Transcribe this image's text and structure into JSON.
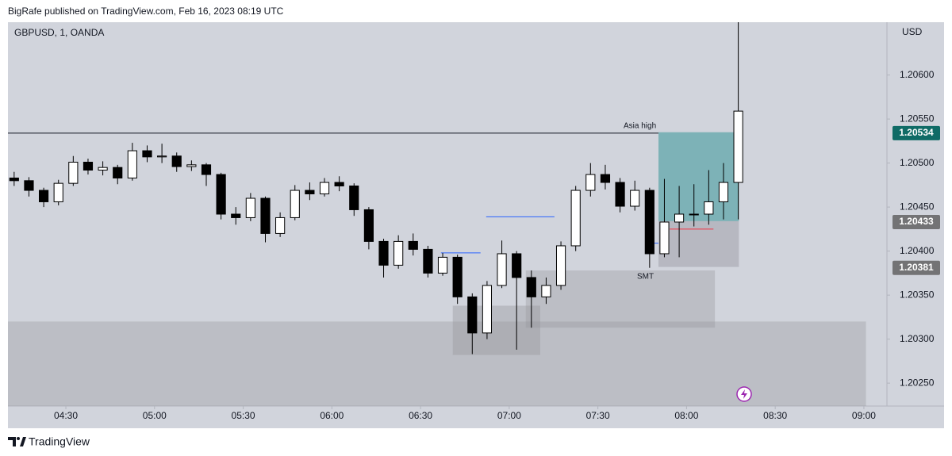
{
  "header": "BigRafe published on TradingView.com, Feb 16, 2023 08:19 UTC",
  "footer": "TradingView",
  "chart_data": {
    "type": "candlestick",
    "symbol": "GBPUSD, 1, OANDA",
    "currency": "USD",
    "candle_up_color": "#ffffff",
    "candle_down_color": "#000000",
    "x": [
      250,
      255,
      260,
      265,
      270,
      275,
      280,
      285,
      290,
      295,
      300,
      305,
      310,
      315,
      320,
      325,
      330,
      335,
      340,
      345,
      350,
      355,
      360,
      365,
      370,
      375,
      380,
      385,
      390,
      395,
      400,
      405,
      410,
      415,
      420,
      425,
      430,
      435,
      440,
      445,
      450,
      455,
      460,
      465,
      470,
      475,
      480,
      485,
      490,
      495
    ],
    "open": [
      1.20483,
      1.2048,
      1.20469,
      1.20456,
      1.20477,
      1.20501,
      1.20492,
      1.20495,
      1.20483,
      1.20514,
      1.20507,
      1.20508,
      1.20496,
      1.20498,
      1.20487,
      1.20442,
      1.20438,
      1.2046,
      1.2042,
      1.20438,
      1.20469,
      1.20465,
      1.20478,
      1.20474,
      1.20447,
      1.20411,
      1.20384,
      1.20411,
      1.20402,
      1.20375,
      1.20393,
      1.20348,
      1.20307,
      1.20361,
      1.20397,
      1.2037,
      1.20348,
      1.20361,
      1.20406,
      1.20469,
      1.20487,
      1.20478,
      1.20451,
      1.20469,
      1.20397,
      1.20433,
      1.20442,
      1.20442,
      1.20456,
      1.20478
    ],
    "high": [
      1.2049,
      1.20484,
      1.20472,
      1.20481,
      1.20508,
      1.20505,
      1.20502,
      1.20498,
      1.20523,
      1.2052,
      1.20522,
      1.20512,
      1.20503,
      1.205,
      1.20489,
      1.2045,
      1.20466,
      1.20462,
      1.20444,
      1.20475,
      1.20478,
      1.20483,
      1.20485,
      1.20477,
      1.2045,
      1.20414,
      1.20418,
      1.2042,
      1.20406,
      1.20398,
      1.20396,
      1.20352,
      1.20366,
      1.20412,
      1.204,
      1.20378,
      1.2037,
      1.20411,
      1.20474,
      1.205,
      1.20498,
      1.20483,
      1.2048,
      1.20472,
      1.20482,
      1.20474,
      1.20476,
      1.20492,
      1.205,
      1.2066
    ],
    "low": [
      1.20474,
      1.20462,
      1.2045,
      1.20452,
      1.20474,
      1.20487,
      1.20486,
      1.20476,
      1.2048,
      1.20501,
      1.205,
      1.2049,
      1.20491,
      1.20474,
      1.20436,
      1.2043,
      1.20434,
      1.2041,
      1.20416,
      1.20435,
      1.20458,
      1.20462,
      1.20468,
      1.2044,
      1.20402,
      1.2037,
      1.2038,
      1.20395,
      1.2037,
      1.20372,
      1.2034,
      1.20283,
      1.203,
      1.20358,
      1.20288,
      1.20313,
      1.2034,
      1.20356,
      1.204,
      1.20462,
      1.2047,
      1.20444,
      1.20446,
      1.20381,
      1.20393,
      1.20393,
      1.20428,
      1.2043,
      1.20436,
      1.20436
    ],
    "close": [
      1.2048,
      1.20469,
      1.20456,
      1.20477,
      1.20501,
      1.20492,
      1.20495,
      1.20483,
      1.20514,
      1.20507,
      1.20508,
      1.20496,
      1.20498,
      1.20487,
      1.20442,
      1.20438,
      1.2046,
      1.2042,
      1.20438,
      1.20469,
      1.20465,
      1.20478,
      1.20474,
      1.20447,
      1.20411,
      1.20384,
      1.20411,
      1.20402,
      1.20375,
      1.20393,
      1.20348,
      1.20307,
      1.20361,
      1.20397,
      1.2037,
      1.20348,
      1.20361,
      1.20406,
      1.20469,
      1.20487,
      1.20478,
      1.20451,
      1.20469,
      1.20397,
      1.20433,
      1.20442,
      1.20442,
      1.20456,
      1.20478,
      1.20559
    ],
    "xlim": [
      250.4,
      547.8
    ],
    "ylim": [
      1.20224,
      1.2066
    ],
    "xticks": [
      {
        "value": 270,
        "label": "04:30"
      },
      {
        "value": 300,
        "label": "05:00"
      },
      {
        "value": 330,
        "label": "05:30"
      },
      {
        "value": 360,
        "label": "06:00"
      },
      {
        "value": 390,
        "label": "06:30"
      },
      {
        "value": 420,
        "label": "07:00"
      },
      {
        "value": 450,
        "label": "07:30"
      },
      {
        "value": 480,
        "label": "08:00"
      },
      {
        "value": 510,
        "label": "08:30"
      },
      {
        "value": 540,
        "label": "09:00"
      }
    ],
    "yticks": [
      {
        "value": 1.2025,
        "label": "1.20250"
      },
      {
        "value": 1.203,
        "label": "1.20300"
      },
      {
        "value": 1.2035,
        "label": "1.20350"
      },
      {
        "value": 1.204,
        "label": "1.20400"
      },
      {
        "value": 1.2045,
        "label": "1.20450"
      },
      {
        "value": 1.205,
        "label": "1.20500"
      },
      {
        "value": 1.2055,
        "label": "1.20550"
      },
      {
        "value": 1.206,
        "label": "1.20600"
      }
    ],
    "price_labels": [
      {
        "value": 1.20534,
        "color": "#0f6b66"
      },
      {
        "value": 1.20433,
        "color": "#737375"
      },
      {
        "value": 1.20381,
        "color": "#737375"
      }
    ],
    "zones": [
      {
        "x": [
          250.4,
          540.7
        ],
        "y": [
          1.20224,
          1.2032
        ],
        "color": "rgba(150,150,155,0.35)"
      },
      {
        "x": [
          425.6,
          489.6
        ],
        "y": [
          1.20313,
          1.20378
        ],
        "color": "rgba(150,150,155,0.35)"
      },
      {
        "x": [
          400.9,
          430.5
        ],
        "y": [
          1.20282,
          1.20338
        ],
        "color": "rgba(150,150,155,0.4)"
      },
      {
        "x": [
          470.5,
          497.7
        ],
        "y": [
          1.20434,
          1.20535
        ],
        "color": "rgba(0,128,128,0.4)"
      },
      {
        "x": [
          470.5,
          497.7
        ],
        "y": [
          1.20382,
          1.20434
        ],
        "color": "rgba(150,150,160,0.45)"
      }
    ],
    "levels": [
      {
        "x": [
          250.4,
          470.5
        ],
        "y": 1.20534,
        "color": "#131722"
      },
      {
        "x": [
          396.9,
          410.3
        ],
        "y": 1.20398,
        "color": "#2962ff"
      },
      {
        "x": [
          412.2,
          435.3
        ],
        "y": 1.20439,
        "color": "#2962ff"
      },
      {
        "x": [
          467.3,
          470.5
        ],
        "y": 1.20409,
        "color": "#2962ff"
      },
      {
        "x": [
          474.3,
          489.1
        ],
        "y": 1.20425,
        "color": "#f23645"
      }
    ],
    "annotations": [
      "Asia high",
      "SMT"
    ]
  }
}
